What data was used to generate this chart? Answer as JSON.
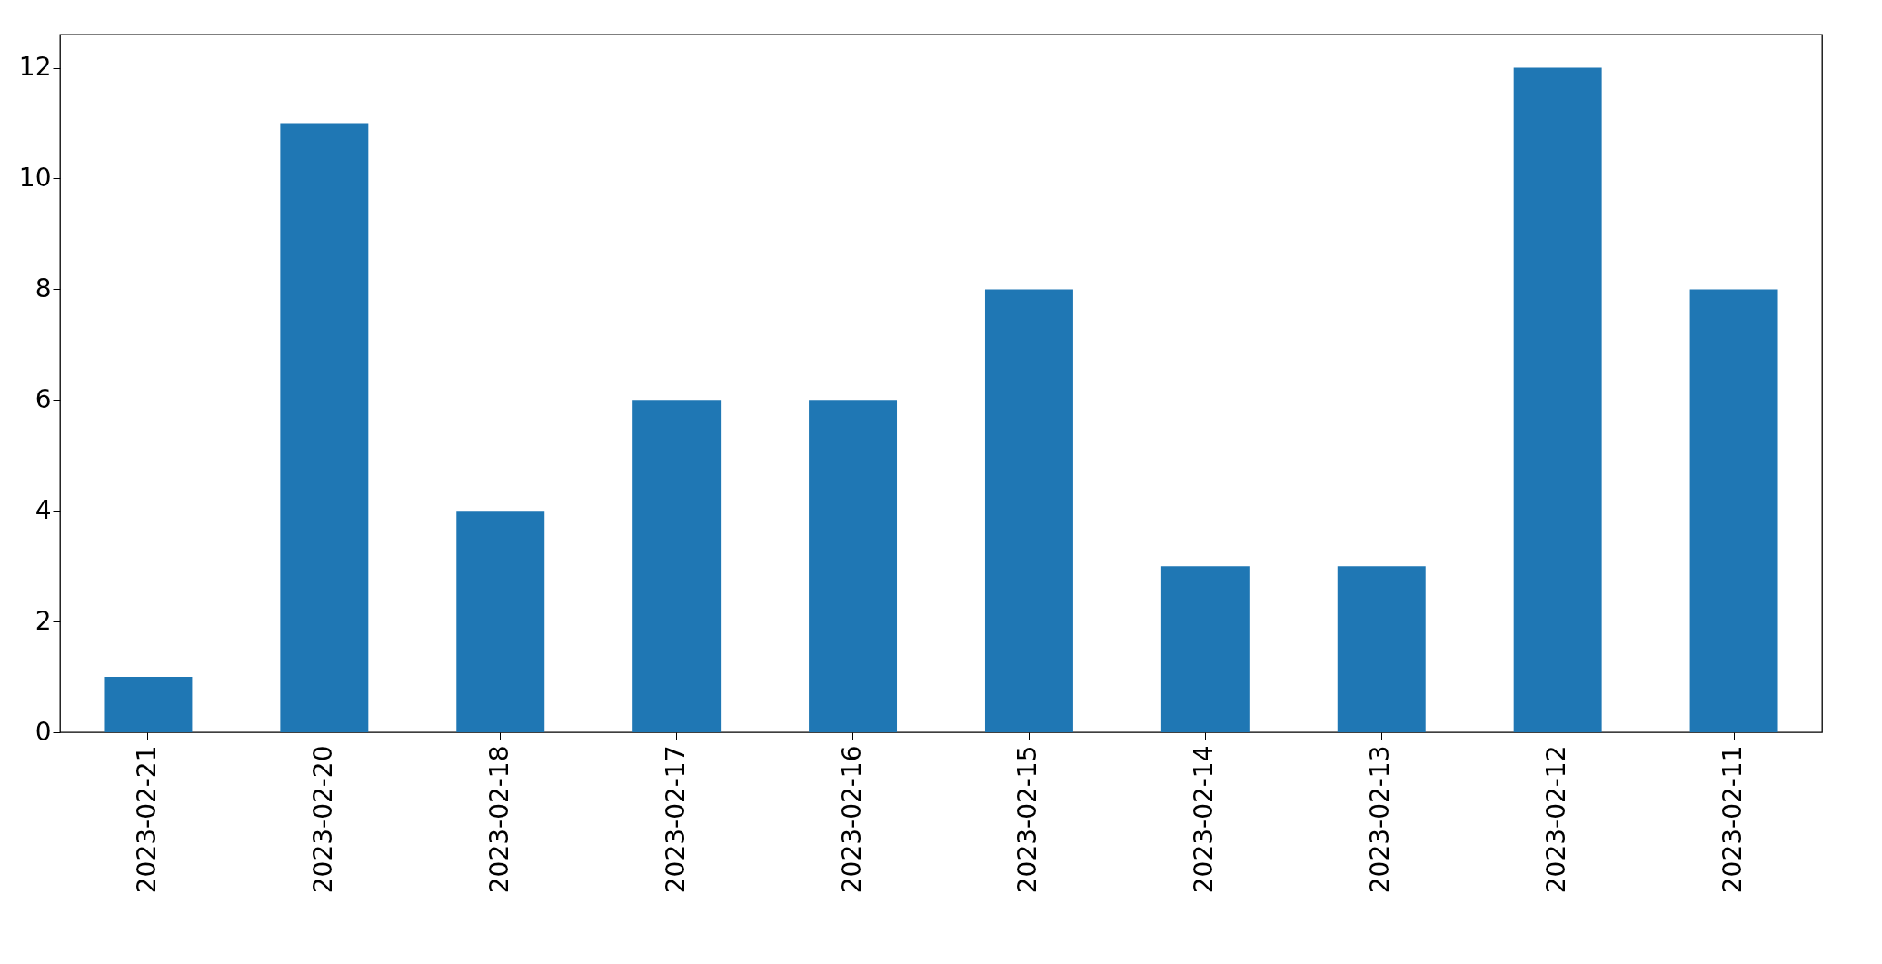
{
  "chart_data": {
    "type": "bar",
    "categories": [
      "2023-02-21",
      "2023-02-20",
      "2023-02-18",
      "2023-02-17",
      "2023-02-16",
      "2023-02-15",
      "2023-02-14",
      "2023-02-13",
      "2023-02-12",
      "2023-02-11"
    ],
    "values": [
      1,
      11,
      4,
      6,
      6,
      8,
      3,
      3,
      12,
      8
    ],
    "color": "#1f77b4",
    "ylim": [
      0,
      12.6
    ],
    "yticks": [
      0,
      2,
      4,
      6,
      8,
      10,
      12
    ],
    "grid": false
  }
}
